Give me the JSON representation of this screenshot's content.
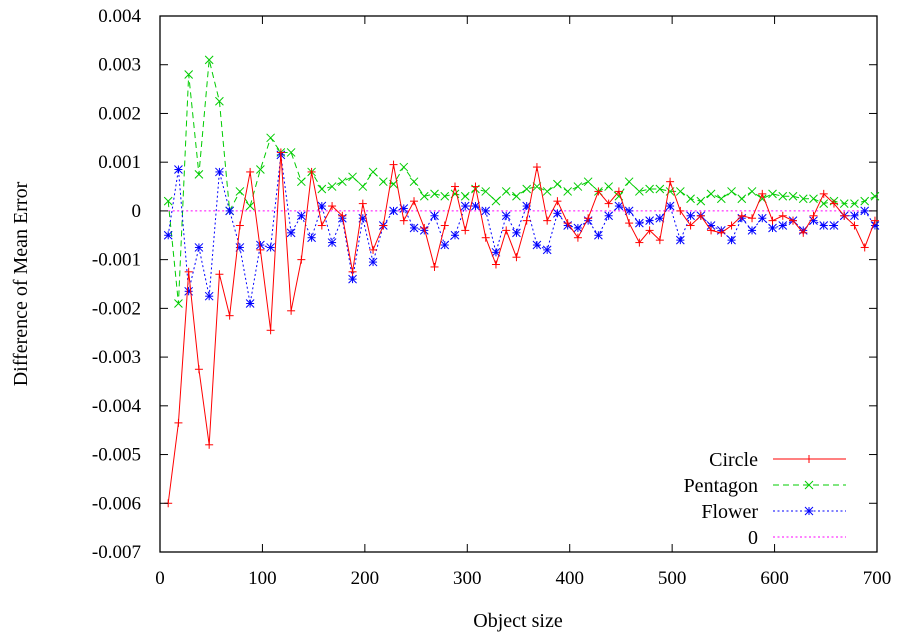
{
  "chart_data": {
    "type": "line",
    "title": "",
    "xlabel": "Object size",
    "ylabel": "Difference of Mean Error",
    "xlim": [
      0,
      700
    ],
    "ylim": [
      -0.007,
      0.004
    ],
    "grid": false,
    "legend_position": "bottom-right",
    "x_ticks": [
      0,
      100,
      200,
      300,
      400,
      500,
      600,
      700
    ],
    "x_tick_labels": [
      "0",
      "100",
      "200",
      "300",
      "400",
      "500",
      "600",
      "700"
    ],
    "y_ticks": [
      -0.007,
      -0.006,
      -0.005,
      -0.004,
      -0.003,
      -0.002,
      -0.001,
      0,
      0.001,
      0.002,
      0.003,
      0.004
    ],
    "y_tick_labels": [
      "-0.007",
      "-0.006",
      "-0.005",
      "-0.004",
      "-0.003",
      "-0.002",
      "-0.001",
      "0",
      "0.001",
      "0.002",
      "0.003",
      "0.004"
    ],
    "x": [
      8,
      18,
      28,
      38,
      48,
      58,
      68,
      78,
      88,
      98,
      108,
      118,
      128,
      138,
      148,
      158,
      168,
      178,
      188,
      198,
      208,
      218,
      228,
      238,
      248,
      258,
      268,
      278,
      288,
      298,
      308,
      318,
      328,
      338,
      348,
      358,
      368,
      378,
      388,
      398,
      408,
      418,
      428,
      438,
      448,
      458,
      468,
      478,
      488,
      498,
      508,
      518,
      528,
      538,
      548,
      558,
      568,
      578,
      588,
      598,
      608,
      618,
      628,
      638,
      648,
      658,
      668,
      678,
      688,
      698
    ],
    "series": [
      {
        "name": "Circle",
        "color": "#ff0000",
        "dash": "solid",
        "marker": "plus",
        "values": [
          -0.006,
          -0.00435,
          -0.00125,
          -0.00325,
          -0.0048,
          -0.0013,
          -0.00215,
          -0.0003,
          0.0008,
          -0.0008,
          -0.00245,
          0.0012,
          -0.00205,
          -0.001,
          0.0008,
          -0.0003,
          0.0001,
          -0.0001,
          -0.00125,
          0.00015,
          -0.0008,
          -0.0003,
          0.00095,
          -0.0002,
          0.0002,
          -0.00035,
          -0.00115,
          -0.0003,
          0.0005,
          -0.0004,
          0.0005,
          -0.00055,
          -0.0011,
          -0.0004,
          -0.00095,
          -0.0002,
          0.0009,
          -0.0002,
          0.0002,
          -0.00025,
          -0.00055,
          -0.00015,
          0.0004,
          0.00015,
          0.0004,
          -0.00025,
          -0.00065,
          -0.0004,
          -0.0006,
          0.0006,
          0.0,
          -0.0003,
          -0.0001,
          -0.0004,
          -0.00045,
          -0.0003,
          -0.0001,
          -0.00015,
          0.00035,
          -0.0002,
          -0.0001,
          -0.0002,
          -0.00045,
          -0.0001,
          0.00035,
          0.00015,
          -0.0001,
          -0.0003,
          -0.00075,
          -0.0002
        ]
      },
      {
        "name": "Pentagon",
        "color": "#00cc00",
        "dash": "dashed",
        "marker": "cross",
        "values": [
          0.0002,
          -0.0019,
          0.0028,
          0.00075,
          0.0031,
          0.00225,
          0.0,
          0.0004,
          0.0001,
          0.00085,
          0.0015,
          0.0012,
          0.0012,
          0.0006,
          0.0008,
          0.00045,
          0.0005,
          0.0006,
          0.0007,
          0.0005,
          0.0008,
          0.0006,
          0.00055,
          0.0009,
          0.0006,
          0.0003,
          0.00035,
          0.0003,
          0.00035,
          0.0003,
          0.00045,
          0.0004,
          0.0002,
          0.0004,
          0.0003,
          0.00045,
          0.0005,
          0.0004,
          0.00055,
          0.0004,
          0.0005,
          0.0006,
          0.0004,
          0.0005,
          0.0003,
          0.0006,
          0.0004,
          0.00045,
          0.00045,
          0.0004,
          0.0004,
          0.00025,
          0.0002,
          0.00035,
          0.00025,
          0.0004,
          0.00025,
          0.0004,
          0.00025,
          0.00035,
          0.0003,
          0.0003,
          0.00025,
          0.00025,
          0.00015,
          0.0002,
          0.00015,
          0.00015,
          0.0002,
          0.0003
        ]
      },
      {
        "name": "Flower",
        "color": "#0000ff",
        "dash": "dotted",
        "marker": "star",
        "values": [
          -0.0005,
          0.00085,
          -0.00165,
          -0.00075,
          -0.00175,
          0.0008,
          0.0,
          -0.00075,
          -0.0019,
          -0.0007,
          -0.00075,
          0.00115,
          -0.00045,
          -0.0001,
          -0.00055,
          0.0001,
          -0.00065,
          -0.00015,
          -0.0014,
          -0.00015,
          -0.00105,
          -0.0003,
          0.0,
          5e-05,
          -0.00035,
          -0.0004,
          -0.0001,
          -0.0007,
          -0.0005,
          0.0001,
          0.0001,
          0.0,
          -0.00085,
          -0.0001,
          -0.00045,
          0.0001,
          -0.0007,
          -0.0008,
          -5e-05,
          -0.0003,
          -0.00035,
          -0.0002,
          -0.0005,
          -0.0001,
          0.0001,
          0.0,
          -0.00025,
          -0.0002,
          -0.00015,
          0.0001,
          -0.0006,
          -0.0001,
          -0.0001,
          -0.0003,
          -0.0004,
          -0.0006,
          -0.00015,
          -0.0004,
          -0.00015,
          -0.00035,
          -0.0003,
          -0.0002,
          -0.0004,
          -0.0002,
          -0.0003,
          -0.0003,
          -0.0001,
          -0.0001,
          0.0,
          -0.0003
        ]
      },
      {
        "name": "0",
        "color": "#ff00ff",
        "dash": "dotted",
        "marker": "none",
        "values": [
          0,
          0,
          0,
          0,
          0,
          0,
          0,
          0,
          0,
          0,
          0,
          0,
          0,
          0,
          0,
          0,
          0,
          0,
          0,
          0,
          0,
          0,
          0,
          0,
          0,
          0,
          0,
          0,
          0,
          0,
          0,
          0,
          0,
          0,
          0,
          0,
          0,
          0,
          0,
          0,
          0,
          0,
          0,
          0,
          0,
          0,
          0,
          0,
          0,
          0,
          0,
          0,
          0,
          0,
          0,
          0,
          0,
          0,
          0,
          0,
          0,
          0,
          0,
          0,
          0,
          0,
          0,
          0,
          0,
          0
        ]
      }
    ]
  }
}
